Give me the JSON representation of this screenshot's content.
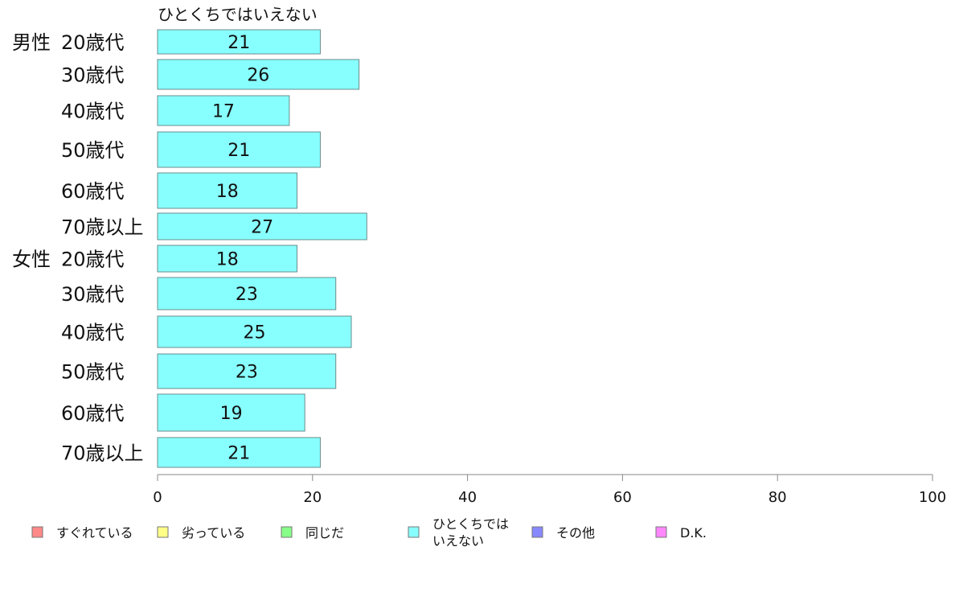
{
  "chart_data": {
    "type": "bar",
    "orientation": "horizontal",
    "title": "",
    "series_header": "ひとくちではいえない",
    "groups": [
      {
        "name": "男性",
        "categories": [
          "20歳代",
          "30歳代",
          "40歳代",
          "50歳代",
          "60歳代",
          "70歳以上"
        ],
        "values": [
          21,
          26,
          17,
          21,
          18,
          27
        ]
      },
      {
        "name": "女性",
        "categories": [
          "20歳代",
          "30歳代",
          "40歳代",
          "50歳代",
          "60歳代",
          "70歳以上"
        ],
        "values": [
          18,
          23,
          25,
          23,
          19,
          21
        ]
      }
    ],
    "bar_color": "#88ffff",
    "xlim": [
      0,
      100
    ],
    "xticks": [
      0,
      20,
      40,
      60,
      80,
      100
    ],
    "grid": false,
    "legend_position": "bottom",
    "legend": [
      {
        "label": "すぐれている",
        "color": "#ff8888"
      },
      {
        "label": "劣っている",
        "color": "#ffff88"
      },
      {
        "label": "同じだ",
        "color": "#88ff88"
      },
      {
        "label": "ひとくちでは\nいえない",
        "color": "#88ffff"
      },
      {
        "label": "その他",
        "color": "#8888ff"
      },
      {
        "label": "D.K.",
        "color": "#ff88ff"
      }
    ]
  }
}
